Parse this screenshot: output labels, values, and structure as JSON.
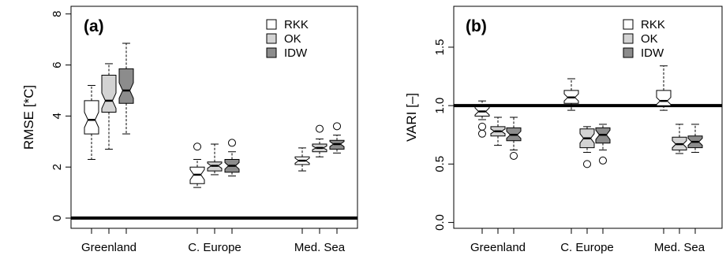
{
  "chart_data": [
    {
      "type": "boxplot",
      "panel_label": "(a)",
      "ylabel": "RMSE [*C]",
      "ylim": [
        -0.4,
        8.3
      ],
      "yticks": [
        0,
        2,
        4,
        6,
        8
      ],
      "ytick_labels": [
        "0",
        "2",
        "4",
        "6",
        "8"
      ],
      "hline": 0,
      "categories": [
        "Greenland",
        "C. Europe",
        "Med. Sea"
      ],
      "legend": [
        "RKK",
        "OK",
        "IDW"
      ],
      "legend_position": "top-right",
      "colors": {
        "RKK": "#ffffff",
        "OK": "#d3d3d3",
        "IDW": "#8c8c8c"
      },
      "series": [
        {
          "name": "RKK",
          "boxes": [
            {
              "category": "Greenland",
              "whisker_low": 2.3,
              "q1": 3.3,
              "median": 3.85,
              "q3": 4.6,
              "whisker_high": 5.2,
              "notch": [
                3.55,
                4.15
              ],
              "outliers": []
            },
            {
              "category": "C. Europe",
              "whisker_low": 1.2,
              "q1": 1.35,
              "median": 1.7,
              "q3": 2.0,
              "whisker_high": 2.3,
              "notch": [
                1.5,
                1.9
              ],
              "outliers": [
                2.8
              ]
            },
            {
              "category": "Med. Sea",
              "whisker_low": 1.85,
              "q1": 2.1,
              "median": 2.25,
              "q3": 2.4,
              "whisker_high": 2.75,
              "notch": [
                2.15,
                2.35
              ],
              "outliers": []
            }
          ]
        },
        {
          "name": "OK",
          "boxes": [
            {
              "category": "Greenland",
              "whisker_low": 2.7,
              "q1": 4.15,
              "median": 4.6,
              "q3": 5.6,
              "whisker_high": 6.05,
              "notch": [
                4.3,
                4.9
              ],
              "outliers": []
            },
            {
              "category": "C. Europe",
              "whisker_low": 1.7,
              "q1": 1.85,
              "median": 2.05,
              "q3": 2.2,
              "whisker_high": 2.9,
              "notch": [
                1.95,
                2.15
              ],
              "outliers": []
            },
            {
              "category": "Med. Sea",
              "whisker_low": 2.4,
              "q1": 2.6,
              "median": 2.75,
              "q3": 2.9,
              "whisker_high": 3.1,
              "notch": [
                2.68,
                2.82
              ],
              "outliers": [
                3.5
              ]
            }
          ]
        },
        {
          "name": "IDW",
          "boxes": [
            {
              "category": "Greenland",
              "whisker_low": 3.3,
              "q1": 4.5,
              "median": 5.0,
              "q3": 5.85,
              "whisker_high": 6.85,
              "notch": [
                4.7,
                5.3
              ],
              "outliers": []
            },
            {
              "category": "C. Europe",
              "whisker_low": 1.65,
              "q1": 1.8,
              "median": 2.05,
              "q3": 2.3,
              "whisker_high": 2.6,
              "notch": [
                1.92,
                2.18
              ],
              "outliers": [
                2.95
              ]
            },
            {
              "category": "Med. Sea",
              "whisker_low": 2.55,
              "q1": 2.7,
              "median": 2.9,
              "q3": 3.05,
              "whisker_high": 3.25,
              "notch": [
                2.8,
                3.0
              ],
              "outliers": [
                3.6
              ]
            }
          ]
        }
      ]
    },
    {
      "type": "boxplot",
      "panel_label": "(b)",
      "ylabel": "VARI [–]",
      "ylim": [
        -0.05,
        1.85
      ],
      "yticks": [
        0,
        0.5,
        1.0,
        1.5
      ],
      "ytick_labels": [
        "0.0",
        "0.5",
        "1.0",
        "1.5"
      ],
      "hline": 1.0,
      "categories": [
        "Greenland",
        "C. Europe",
        "Med. Sea"
      ],
      "legend": [
        "RKK",
        "OK",
        "IDW"
      ],
      "legend_position": "top-right",
      "colors": {
        "RKK": "#ffffff",
        "OK": "#d3d3d3",
        "IDW": "#8c8c8c"
      },
      "series": [
        {
          "name": "RKK",
          "boxes": [
            {
              "category": "Greenland",
              "whisker_low": 0.88,
              "q1": 0.91,
              "median": 0.95,
              "q3": 0.99,
              "whisker_high": 1.04,
              "notch": [
                0.92,
                0.98
              ],
              "outliers": [
                0.76,
                0.82
              ]
            },
            {
              "category": "C. Europe",
              "whisker_low": 0.96,
              "q1": 1.02,
              "median": 1.07,
              "q3": 1.13,
              "whisker_high": 1.23,
              "notch": [
                1.04,
                1.1
              ],
              "outliers": []
            },
            {
              "category": "Med. Sea",
              "whisker_low": 0.96,
              "q1": 1.0,
              "median": 1.04,
              "q3": 1.13,
              "whisker_high": 1.34,
              "notch": [
                1.01,
                1.07
              ],
              "outliers": []
            }
          ]
        },
        {
          "name": "OK",
          "boxes": [
            {
              "category": "Greenland",
              "whisker_low": 0.66,
              "q1": 0.74,
              "median": 0.78,
              "q3": 0.82,
              "whisker_high": 0.9,
              "notch": [
                0.76,
                0.8
              ],
              "outliers": []
            },
            {
              "category": "C. Europe",
              "whisker_low": 0.6,
              "q1": 0.64,
              "median": 0.72,
              "q3": 0.8,
              "whisker_high": 0.82,
              "notch": [
                0.68,
                0.76
              ],
              "outliers": [
                0.5
              ]
            },
            {
              "category": "Med. Sea",
              "whisker_low": 0.59,
              "q1": 0.62,
              "median": 0.67,
              "q3": 0.73,
              "whisker_high": 0.84,
              "notch": [
                0.64,
                0.7
              ],
              "outliers": []
            }
          ]
        },
        {
          "name": "IDW",
          "boxes": [
            {
              "category": "Greenland",
              "whisker_low": 0.62,
              "q1": 0.7,
              "median": 0.75,
              "q3": 0.81,
              "whisker_high": 0.9,
              "notch": [
                0.72,
                0.78
              ],
              "outliers": [
                0.57
              ]
            },
            {
              "category": "C. Europe",
              "whisker_low": 0.62,
              "q1": 0.68,
              "median": 0.75,
              "q3": 0.81,
              "whisker_high": 0.84,
              "notch": [
                0.71,
                0.79
              ],
              "outliers": [
                0.53
              ]
            },
            {
              "category": "Med. Sea",
              "whisker_low": 0.6,
              "q1": 0.64,
              "median": 0.69,
              "q3": 0.74,
              "whisker_high": 0.84,
              "notch": [
                0.66,
                0.72
              ],
              "outliers": []
            }
          ]
        }
      ]
    }
  ]
}
